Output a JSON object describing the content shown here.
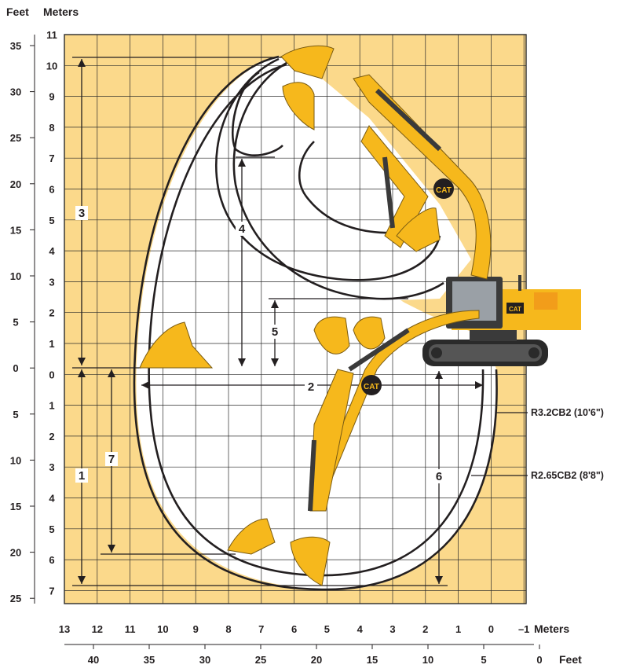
{
  "units": {
    "feet_left": "Feet",
    "meters_left": "Meters",
    "meters_bottom": "Meters",
    "feet_bottom": "Feet"
  },
  "scale": {
    "meters_vertical_top": [
      "11",
      "10",
      "9",
      "8",
      "7",
      "6",
      "5",
      "4",
      "3",
      "2",
      "1",
      "0"
    ],
    "meters_vertical_bottom": [
      "1",
      "2",
      "3",
      "4",
      "5",
      "6",
      "7"
    ],
    "feet_vertical": [
      "35",
      "30",
      "25",
      "20",
      "15",
      "10",
      "5",
      "0",
      "5",
      "10",
      "15",
      "20",
      "25"
    ],
    "meters_horizontal": [
      "13",
      "12",
      "11",
      "10",
      "9",
      "8",
      "7",
      "6",
      "5",
      "4",
      "3",
      "2",
      "1",
      "0",
      "–1"
    ],
    "feet_horizontal": [
      "40",
      "35",
      "30",
      "25",
      "20",
      "15",
      "10",
      "5",
      "0"
    ]
  },
  "dimensions": [
    "1",
    "2",
    "3",
    "4",
    "5",
    "6",
    "7"
  ],
  "series": [
    {
      "name": "R3.2CB2 (10'6\")"
    },
    {
      "name": "R2.65CB2 (8'8\")"
    }
  ],
  "colors": {
    "background": "#fbd98b",
    "grid": "#2b2b2b",
    "machine_yellow": "#f6b81c",
    "machine_dark": "#3a3a3a",
    "ink": "#231f20"
  },
  "logo": "CAT"
}
